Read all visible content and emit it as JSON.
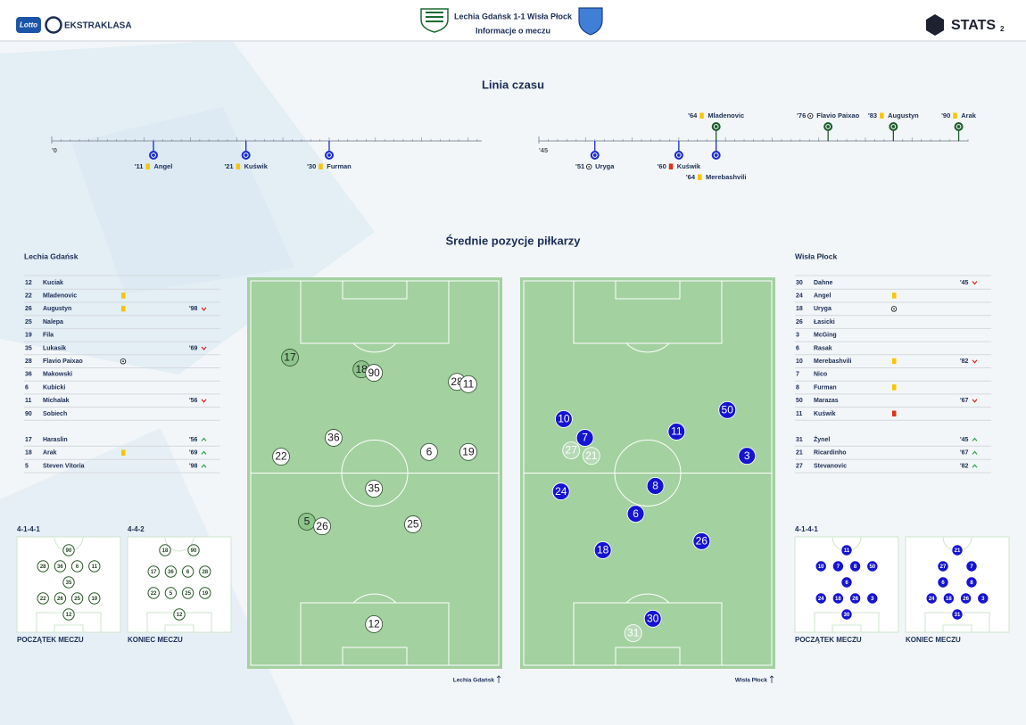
{
  "header": {
    "sponsor": "Lotto",
    "brand": "EKSTRAKLASA",
    "match": "Lechia Gdańsk 1-1 Wisła Płock",
    "subtitle": "Informacje o meczu",
    "stats": "STATS",
    "stats_sub": "2"
  },
  "timeline": {
    "title": "Linia czasu",
    "halves": [
      {
        "xlim": [
          0,
          46.5
        ],
        "xticks": [
          {
            "value": 0,
            "label": "'0"
          }
        ],
        "events": [
          {
            "minute": {
              "value": 11,
              "label": "'11"
            },
            "player": "Angel",
            "team": "away",
            "kind": "yellow"
          },
          {
            "minute": {
              "value": 21,
              "label": "'21"
            },
            "player": "Kuświk",
            "team": "away",
            "kind": "yellow"
          },
          {
            "minute": {
              "value": 30,
              "label": "'30"
            },
            "player": "Furman",
            "team": "away",
            "kind": "yellow"
          }
        ]
      },
      {
        "xlim": [
          45,
          91
        ],
        "xticks": [
          {
            "value": 45,
            "label": "'45"
          }
        ],
        "events": [
          {
            "minute": {
              "value": 51,
              "label": "'51"
            },
            "player": "Uryga",
            "team": "away",
            "kind": "goal"
          },
          {
            "minute": {
              "value": 60,
              "label": "'60"
            },
            "player": "Kuświk",
            "team": "away",
            "kind": "red"
          },
          {
            "minute": {
              "value": 64,
              "label": "'64"
            },
            "player": "Merebashvili",
            "team": "away",
            "kind": "yellow"
          },
          {
            "minute": {
              "value": 64,
              "label": "'64"
            },
            "player": "Mladenovic",
            "team": "home",
            "kind": "yellow"
          },
          {
            "minute": {
              "value": 76,
              "label": "'76"
            },
            "player": "Flavio Paixao",
            "team": "home",
            "kind": "goal"
          },
          {
            "minute": {
              "value": 83,
              "label": "'83"
            },
            "player": "Augustyn",
            "team": "home",
            "kind": "yellow"
          },
          {
            "minute": {
              "value": 90,
              "label": "'90"
            },
            "player": "Arak",
            "team": "home",
            "kind": "yellow"
          }
        ]
      }
    ]
  },
  "positions": {
    "title": "Średnie pozycje piłkarzy",
    "teams": [
      {
        "name": "Lechia Gdańsk",
        "marker_color": "#ffffff",
        "sub_color": "#8dc58b",
        "text_color": "#1b1b1b",
        "starters": [
          {
            "number": 12,
            "name": "Kuciak"
          },
          {
            "number": 22,
            "name": "Mladenovic",
            "icon": "yellow"
          },
          {
            "number": 26,
            "name": "Augustyn",
            "icon": "yellow",
            "out": "'98"
          },
          {
            "number": 25,
            "name": "Nalepa"
          },
          {
            "number": 19,
            "name": "Fila"
          },
          {
            "number": 35,
            "name": "Lukasik",
            "out": "'69"
          },
          {
            "number": 28,
            "name": "Flavio Paixao",
            "icon": "goal"
          },
          {
            "number": 36,
            "name": "Makowski"
          },
          {
            "number": 6,
            "name": "Kubicki"
          },
          {
            "number": 11,
            "name": "Michalak",
            "out": "'56"
          },
          {
            "number": 90,
            "name": "Sobiech"
          }
        ],
        "subs": [
          {
            "number": 17,
            "name": "Haraslin",
            "in": "'56"
          },
          {
            "number": 18,
            "name": "Arak",
            "icon": "yellow",
            "in": "'69"
          },
          {
            "number": 5,
            "name": "Steven Vitoria",
            "in": "'98"
          }
        ],
        "players": [
          {
            "number": 17,
            "x": 16.8,
            "y": 20.5,
            "sub": true
          },
          {
            "number": 18,
            "x": 44.8,
            "y": 23.5,
            "sub": true
          },
          {
            "number": 90,
            "x": 49.7,
            "y": 24.4
          },
          {
            "number": 28,
            "x": 82.2,
            "y": 26.7
          },
          {
            "number": 11,
            "x": 86.7,
            "y": 27.3
          },
          {
            "number": 36,
            "x": 33.9,
            "y": 41.0
          },
          {
            "number": 22,
            "x": 13.3,
            "y": 45.8
          },
          {
            "number": 6,
            "x": 71.3,
            "y": 44.6
          },
          {
            "number": 19,
            "x": 86.7,
            "y": 44.6
          },
          {
            "number": 35,
            "x": 49.7,
            "y": 54.0
          },
          {
            "number": 5,
            "x": 23.4,
            "y": 62.4,
            "sub": true
          },
          {
            "number": 26,
            "x": 29.4,
            "y": 63.6
          },
          {
            "number": 25,
            "x": 65.0,
            "y": 63.1
          },
          {
            "number": 12,
            "x": 49.7,
            "y": 88.6
          }
        ],
        "formations": [
          {
            "label": "4-1-4-1",
            "caption": "POCZĄTEK MECZU",
            "rows": [
              [
                90
              ],
              [
                28,
                36,
                6,
                11
              ],
              [
                35
              ],
              [
                22,
                26,
                25,
                19
              ],
              [
                12
              ]
            ]
          },
          {
            "label": "4-4-2",
            "caption": "KONIEC MECZU",
            "rows": [
              [
                18,
                90
              ],
              [
                17,
                36,
                6,
                28
              ],
              [
                22,
                5,
                25,
                19
              ],
              [
                12
              ]
            ]
          }
        ]
      },
      {
        "name": "Wisła Płock",
        "marker_color": "#1414d2",
        "sub_color": "#c9e2c8",
        "text_color": "#ffffff",
        "starters": [
          {
            "number": 30,
            "name": "Dahne",
            "out": "'45"
          },
          {
            "number": 24,
            "name": "Angel",
            "icon": "yellow"
          },
          {
            "number": 18,
            "name": "Uryga",
            "icon": "goal"
          },
          {
            "number": 26,
            "name": "Łasicki"
          },
          {
            "number": 3,
            "name": "McGing"
          },
          {
            "number": 6,
            "name": "Rasak"
          },
          {
            "number": 10,
            "name": "Merebashvili",
            "icon": "yellow",
            "out": "'82"
          },
          {
            "number": 7,
            "name": "Nico"
          },
          {
            "number": 8,
            "name": "Furman",
            "icon": "yellow"
          },
          {
            "number": 50,
            "name": "Marazas",
            "out": "'67"
          },
          {
            "number": 11,
            "name": "Kuświk",
            "icon": "red"
          }
        ],
        "subs": [
          {
            "number": 31,
            "name": "Żynel",
            "in": "'45"
          },
          {
            "number": 21,
            "name": "Ricardinho",
            "in": "'67"
          },
          {
            "number": 27,
            "name": "Stevanovic",
            "in": "'82"
          }
        ],
        "players": [
          {
            "number": 10,
            "x": 17.1,
            "y": 36.2
          },
          {
            "number": 50,
            "x": 81.2,
            "y": 33.9
          },
          {
            "number": 7,
            "x": 25.4,
            "y": 41.0
          },
          {
            "number": 11,
            "x": 61.3,
            "y": 39.4
          },
          {
            "number": 27,
            "x": 20.0,
            "y": 44.2,
            "sub": true
          },
          {
            "number": 21,
            "x": 27.9,
            "y": 45.6,
            "sub": true
          },
          {
            "number": 3,
            "x": 88.9,
            "y": 45.6
          },
          {
            "number": 24,
            "x": 16.0,
            "y": 54.7
          },
          {
            "number": 8,
            "x": 53.0,
            "y": 53.3
          },
          {
            "number": 6,
            "x": 45.3,
            "y": 60.4
          },
          {
            "number": 26,
            "x": 71.1,
            "y": 67.4
          },
          {
            "number": 18,
            "x": 32.4,
            "y": 69.7
          },
          {
            "number": 30,
            "x": 52.0,
            "y": 87.2
          },
          {
            "number": 31,
            "x": 44.3,
            "y": 90.9,
            "sub": true
          }
        ],
        "formations": [
          {
            "label": "4-1-4-1",
            "caption": "POCZĄTEK MECZU",
            "rows": [
              [
                11
              ],
              [
                10,
                7,
                8,
                50
              ],
              [
                6
              ],
              [
                24,
                18,
                26,
                3
              ],
              [
                30
              ]
            ]
          },
          {
            "caption": "KONIEC MECZU",
            "rows": [
              [
                21
              ],
              [
                27,
                7
              ],
              [
                6,
                8
              ],
              [
                24,
                18,
                26,
                3
              ],
              [
                31
              ]
            ]
          }
        ]
      }
    ]
  }
}
